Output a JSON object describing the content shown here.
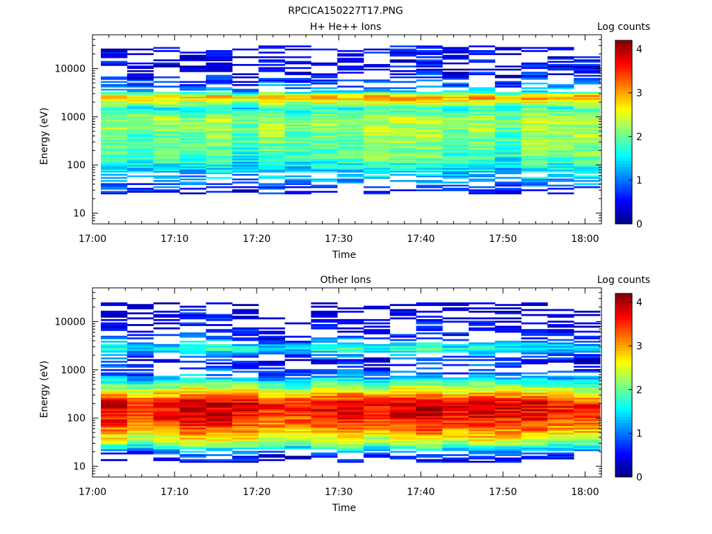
{
  "figure_title": "RPCICA150227T17.PNG",
  "colorbar": {
    "label": "Log counts",
    "ticks": [
      "0",
      "1",
      "2",
      "3",
      "4"
    ],
    "vmin": 0,
    "vmax": 4.2
  },
  "chart_data": [
    {
      "type": "heatmap",
      "title": "H+ He++ Ions",
      "xlabel": "Time",
      "ylabel": "Energy (eV)",
      "x_ticks": [
        "17:00",
        "17:10",
        "17:20",
        "17:30",
        "17:40",
        "17:50",
        "18:00"
      ],
      "x_range": [
        "17:00",
        "18:02"
      ],
      "y_scale": "log",
      "y_ticks": [
        "10",
        "100",
        "1000",
        "10000"
      ],
      "y_range": [
        6,
        50000
      ],
      "time_bins": 19,
      "profile": [
        {
          "energy": 25,
          "value": 0.4
        },
        {
          "energy": 45,
          "value": 1.0
        },
        {
          "energy": 70,
          "value": 1.3
        },
        {
          "energy": 150,
          "value": 1.8
        },
        {
          "energy": 400,
          "value": 2.0
        },
        {
          "energy": 900,
          "value": 2.2
        },
        {
          "energy": 1500,
          "value": 1.6
        },
        {
          "energy": 2600,
          "value": 3.0
        },
        {
          "energy": 3500,
          "value": 1.1
        },
        {
          "energy": 8000,
          "value": 0.4
        },
        {
          "energy": 30000,
          "value": 0.3
        }
      ]
    },
    {
      "type": "heatmap",
      "title": "Other Ions",
      "xlabel": "Time",
      "ylabel": "Energy (eV)",
      "x_ticks": [
        "17:00",
        "17:10",
        "17:20",
        "17:30",
        "17:40",
        "17:50",
        "18:00"
      ],
      "x_range": [
        "17:00",
        "18:02"
      ],
      "y_scale": "log",
      "y_ticks": [
        "10",
        "100",
        "1000",
        "10000"
      ],
      "y_range": [
        6,
        50000
      ],
      "time_bins": 19,
      "profile": [
        {
          "energy": 12,
          "value": 0.3
        },
        {
          "energy": 20,
          "value": 1.0
        },
        {
          "energy": 30,
          "value": 2.2
        },
        {
          "energy": 50,
          "value": 3.0
        },
        {
          "energy": 100,
          "value": 3.6
        },
        {
          "energy": 200,
          "value": 3.8
        },
        {
          "energy": 450,
          "value": 2.2
        },
        {
          "energy": 800,
          "value": 1.0
        },
        {
          "energy": 1500,
          "value": 0.5
        },
        {
          "energy": 2800,
          "value": 1.7
        },
        {
          "energy": 5000,
          "value": 0.6
        },
        {
          "energy": 25000,
          "value": 0.2
        }
      ]
    }
  ]
}
